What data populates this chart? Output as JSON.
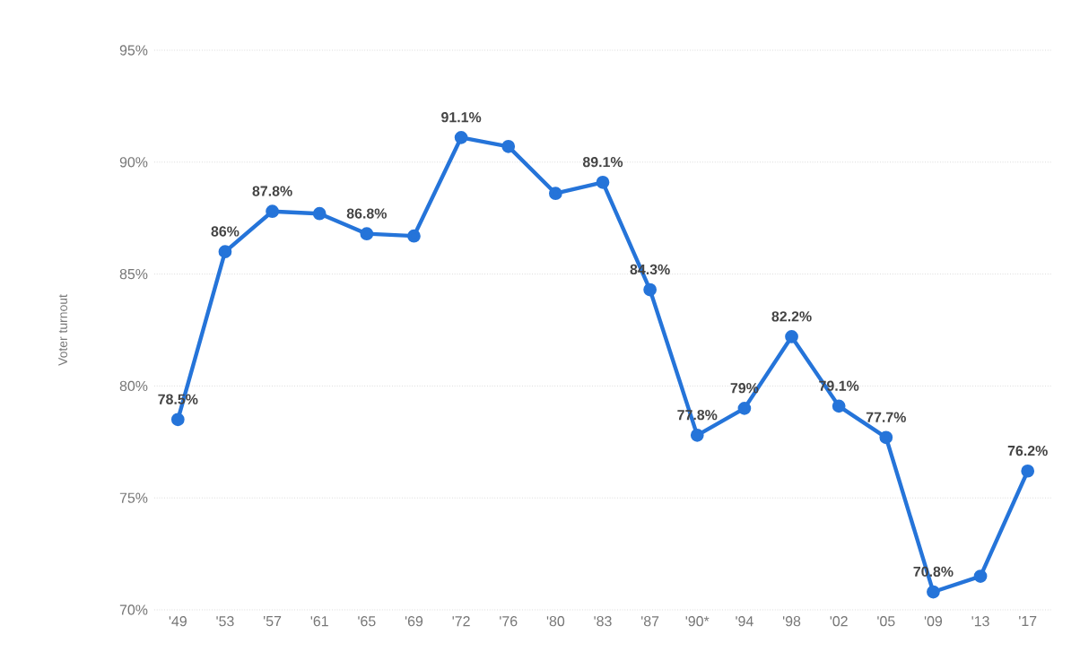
{
  "chart_data": {
    "type": "line",
    "ylabel": "Voter turnout",
    "categories": [
      "'49",
      "'53",
      "'57",
      "'61",
      "'65",
      "'69",
      "'72",
      "'76",
      "'80",
      "'83",
      "'87",
      "'90*",
      "'94",
      "'98",
      "'02",
      "'05",
      "'09",
      "'13",
      "'17"
    ],
    "values": [
      78.5,
      86,
      87.8,
      87.7,
      86.8,
      86.7,
      91.1,
      90.7,
      88.6,
      89.1,
      84.3,
      77.8,
      79,
      82.2,
      79.1,
      77.7,
      70.8,
      71.5,
      76.2
    ],
    "value_labels": [
      "78.5%",
      "86%",
      "87.8%",
      null,
      "86.8%",
      null,
      "91.1%",
      null,
      null,
      "89.1%",
      "84.3%",
      "77.8%",
      "79%",
      "82.2%",
      "79.1%",
      "77.7%",
      "70.8%",
      null,
      "76.2%"
    ],
    "color": "#2574d9",
    "marker": "circle",
    "line_style": "solid",
    "grid": "y",
    "ylim": [
      70,
      95
    ],
    "yticks": [
      {
        "value": 70,
        "label": "70%"
      },
      {
        "value": 75,
        "label": "75%"
      },
      {
        "value": 80,
        "label": "80%"
      },
      {
        "value": 85,
        "label": "85%"
      },
      {
        "value": 90,
        "label": "90%"
      },
      {
        "value": 95,
        "label": "95%"
      }
    ]
  }
}
